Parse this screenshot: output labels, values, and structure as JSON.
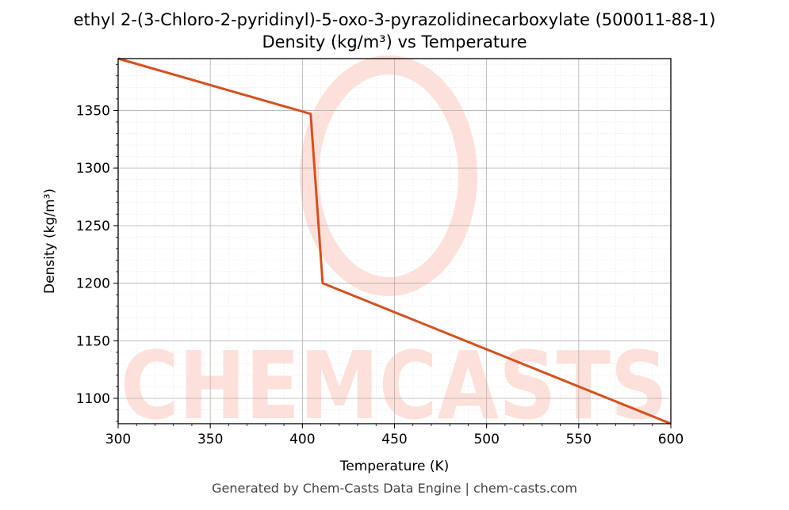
{
  "chart_data": {
    "type": "line",
    "title_line1": "ethyl 2-(3-Chloro-2-pyridinyl)-5-oxo-3-pyrazolidinecarboxylate (500011-88-1)",
    "title_line2": "Density (kg/m³) vs Temperature",
    "xlabel": "Temperature (K)",
    "ylabel": "Density (kg/m³)",
    "xlim": [
      300,
      600
    ],
    "ylim": [
      1078,
      1395
    ],
    "x_ticks": [
      300,
      350,
      400,
      450,
      500,
      550,
      600
    ],
    "y_ticks": [
      1100,
      1150,
      1200,
      1250,
      1300,
      1350
    ],
    "grid": true,
    "series": [
      {
        "x": [
          300,
          404.5,
          411,
          600
        ],
        "y": [
          1395,
          1347,
          1200,
          1078
        ],
        "color": "#d4511e"
      }
    ]
  },
  "watermark": {
    "text": "CHEMCASTS",
    "color": "#fde0da"
  },
  "footer": "Generated by Chem-Casts Data Engine | chem-casts.com"
}
